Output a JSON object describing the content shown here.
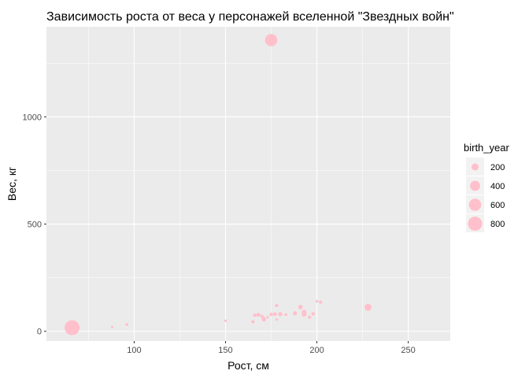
{
  "chart_data": {
    "type": "scatter",
    "title": "Зависимость роста от веса у персонажей вселенной \"Звездных войн\"",
    "xlabel": "Рост, см",
    "ylabel": "Вес, кг",
    "xlim": [
      52,
      273
    ],
    "ylim": [
      -45,
      1420
    ],
    "x_ticks": [
      100,
      150,
      200,
      250
    ],
    "y_ticks": [
      0,
      500,
      1000
    ],
    "x_tick_labels": [
      "100",
      "150",
      "200",
      "250"
    ],
    "y_tick_labels": [
      "0",
      "500",
      "1000"
    ],
    "grid": true,
    "point_color": "#FFC0CB",
    "panel_background": "#EBEBEB",
    "size_variable": "birth_year",
    "legend": {
      "title": "birth_year",
      "position": "right",
      "values": [
        200,
        400,
        600,
        800
      ],
      "labels": [
        "200",
        "400",
        "600",
        "800"
      ]
    },
    "points": [
      {
        "x": 175,
        "y": 1358,
        "birth_year": 600
      },
      {
        "x": 66,
        "y": 17,
        "birth_year": 896
      },
      {
        "x": 88,
        "y": 20,
        "birth_year": 8
      },
      {
        "x": 96,
        "y": 32,
        "birth_year": 33
      },
      {
        "x": 150,
        "y": 49,
        "birth_year": 19
      },
      {
        "x": 165,
        "y": 45,
        "birth_year": 46
      },
      {
        "x": 166,
        "y": 75,
        "birth_year": 52
      },
      {
        "x": 168,
        "y": 77,
        "birth_year": 62
      },
      {
        "x": 170,
        "y": 70,
        "birth_year": 44
      },
      {
        "x": 171,
        "y": 56,
        "birth_year": 82
      },
      {
        "x": 173,
        "y": 66,
        "birth_year": 21
      },
      {
        "x": 175,
        "y": 79,
        "birth_year": 48
      },
      {
        "x": 177,
        "y": 80,
        "birth_year": 58
      },
      {
        "x": 178,
        "y": 120,
        "birth_year": 41.9
      },
      {
        "x": 178,
        "y": 55,
        "birth_year": 24
      },
      {
        "x": 180,
        "y": 80,
        "birth_year": 72
      },
      {
        "x": 183,
        "y": 78,
        "birth_year": 31.5
      },
      {
        "x": 188,
        "y": 84,
        "birth_year": 67
      },
      {
        "x": 191,
        "y": 113,
        "birth_year": 82
      },
      {
        "x": 193,
        "y": 89,
        "birth_year": 91
      },
      {
        "x": 193,
        "y": 80,
        "birth_year": 92
      },
      {
        "x": 196,
        "y": 66,
        "birth_year": 40
      },
      {
        "x": 198,
        "y": 82,
        "birth_year": 48
      },
      {
        "x": 200,
        "y": 140,
        "birth_year": 29
      },
      {
        "x": 202,
        "y": 136,
        "birth_year": 41.9
      },
      {
        "x": 228,
        "y": 112,
        "birth_year": 200
      }
    ]
  }
}
